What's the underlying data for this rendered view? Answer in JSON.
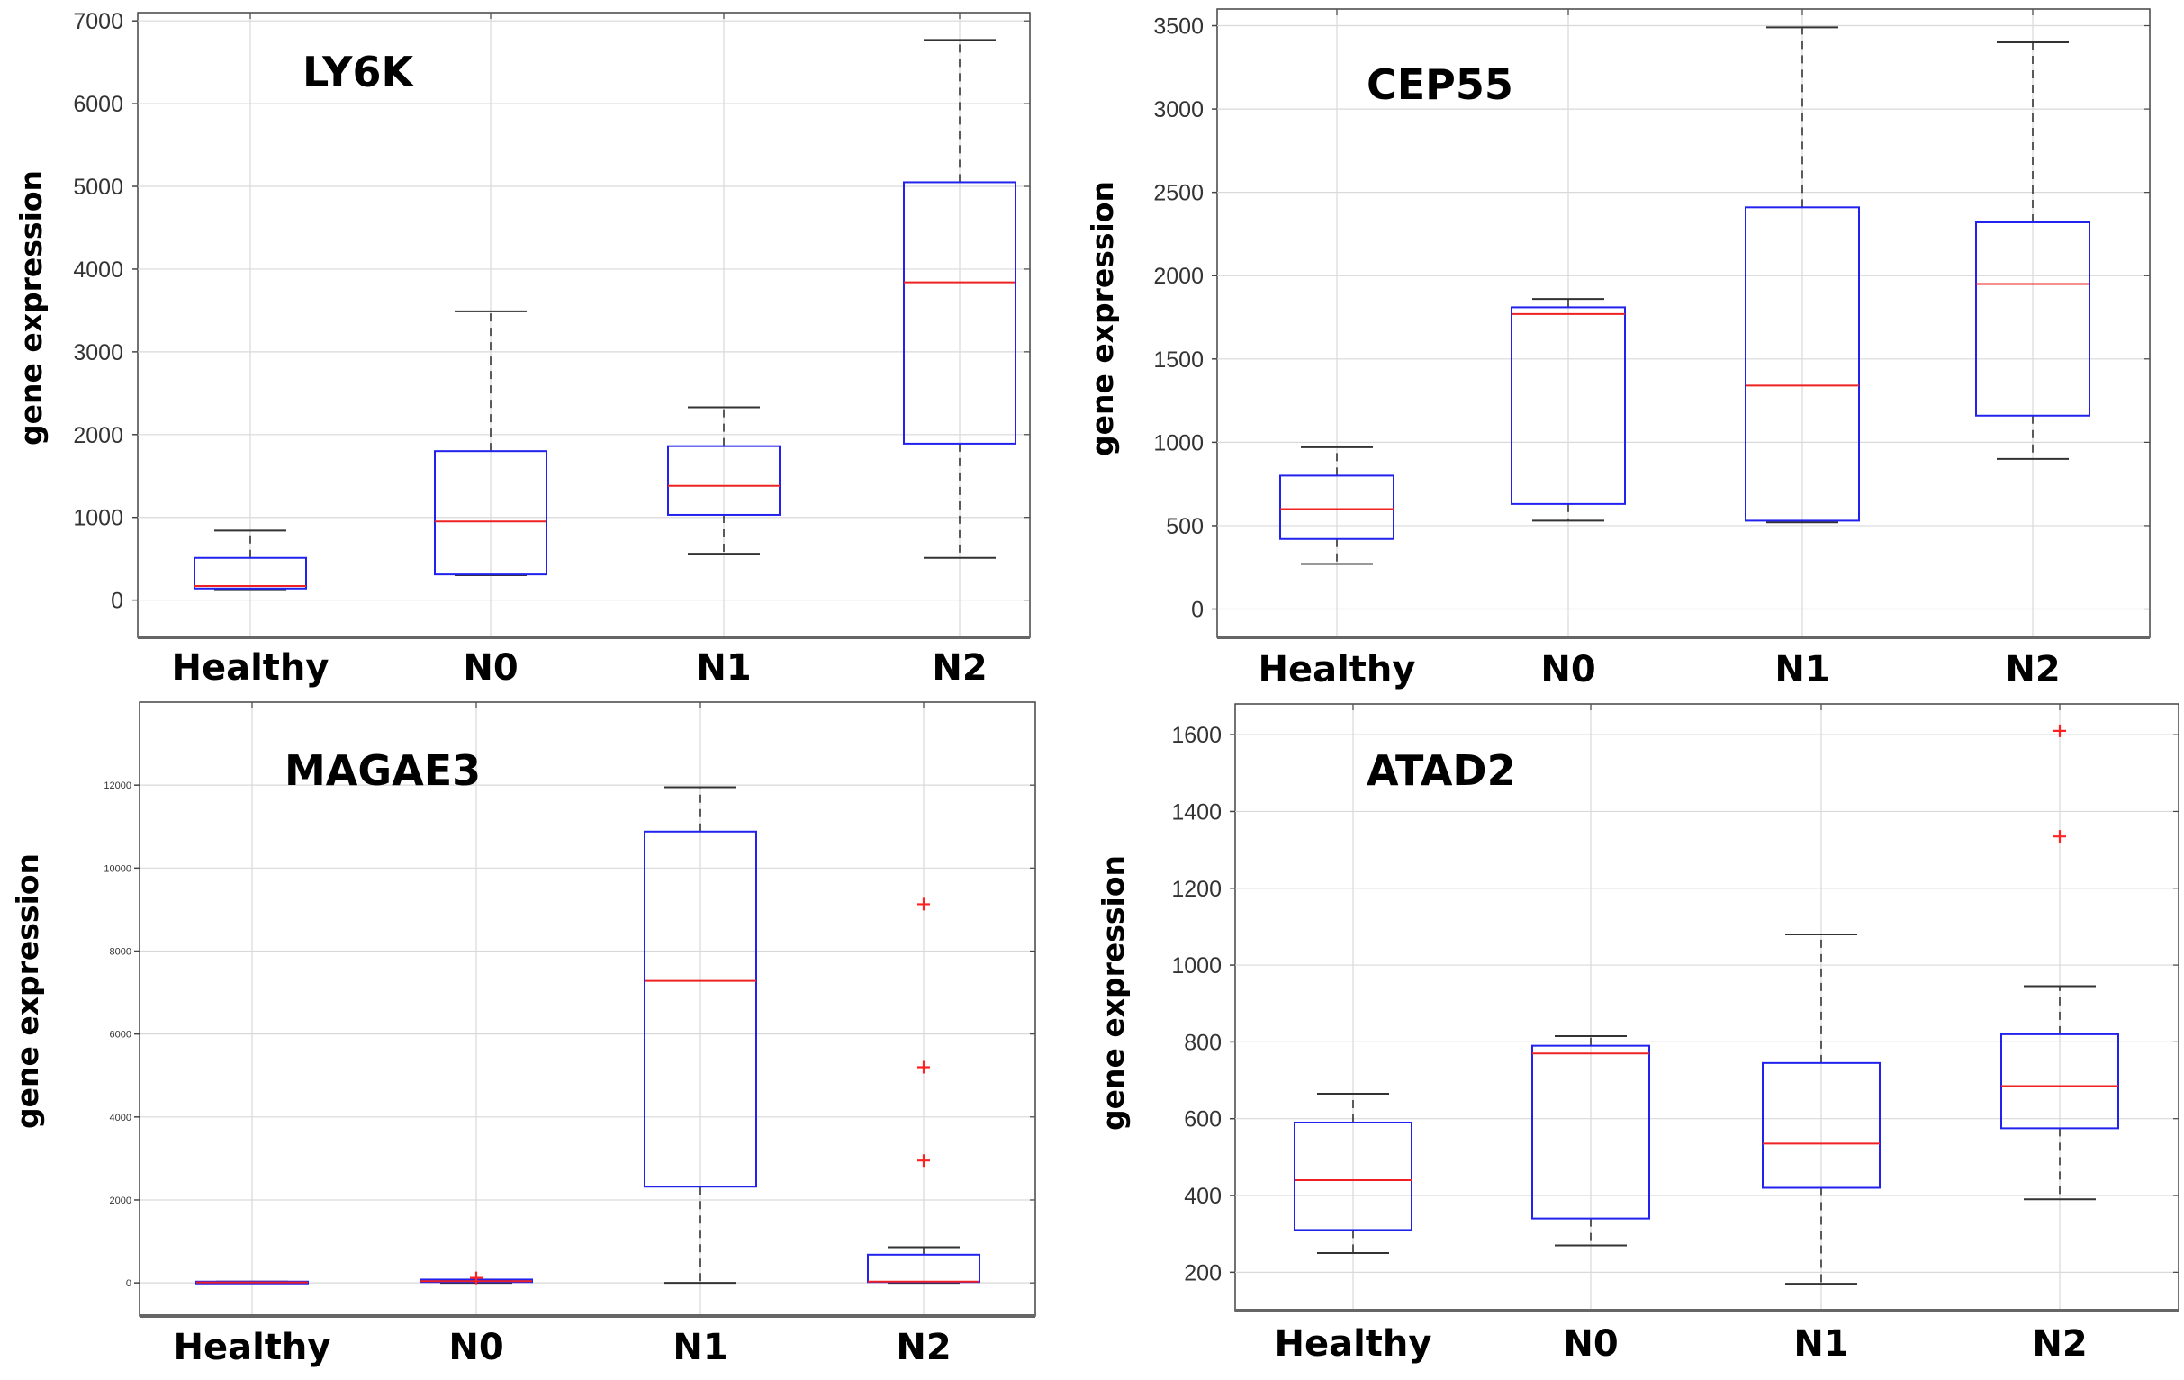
{
  "colors": {
    "box": "#2222ee",
    "median": "#ee2222",
    "whisker": "#333333",
    "outlier": "#ff2222",
    "grid": "#d9d9d9",
    "frame": "#444444"
  },
  "chart_data": [
    {
      "type": "boxplot",
      "title": "LY6K",
      "ylabel": "gene expression",
      "xlabel": "",
      "categories": [
        "Healthy",
        "N0",
        "N1",
        "N2"
      ],
      "ylim": [
        -450,
        7100
      ],
      "yticks": [
        0,
        1000,
        2000,
        3000,
        4000,
        5000,
        6000,
        7000
      ],
      "yticklabels": [
        "0",
        "1000",
        "2000",
        "3000",
        "4000",
        "5000",
        "6000",
        "7000"
      ],
      "grid": true,
      "boxes": [
        {
          "whislo": 130,
          "q1": 140,
          "med": 170,
          "q3": 510,
          "whishi": 840,
          "fliers": []
        },
        {
          "whislo": 300,
          "q1": 310,
          "med": 950,
          "q3": 1800,
          "whishi": 3490,
          "fliers": []
        },
        {
          "whislo": 560,
          "q1": 1030,
          "med": 1380,
          "q3": 1860,
          "whishi": 2330,
          "fliers": []
        },
        {
          "whislo": 510,
          "q1": 1890,
          "med": 3840,
          "q3": 5050,
          "whishi": 6770,
          "fliers": []
        }
      ]
    },
    {
      "type": "boxplot",
      "title": "CEP55",
      "ylabel": "gene expression",
      "xlabel": "",
      "categories": [
        "Healthy",
        "N0",
        "N1",
        "N2"
      ],
      "ylim": [
        -170,
        3600
      ],
      "yticks": [
        0,
        500,
        1000,
        1500,
        2000,
        2500,
        3000,
        3500
      ],
      "yticklabels": [
        "0",
        "500",
        "1000",
        "1500",
        "2000",
        "2500",
        "3000",
        "3500"
      ],
      "grid": true,
      "boxes": [
        {
          "whislo": 270,
          "q1": 420,
          "med": 600,
          "q3": 800,
          "whishi": 970,
          "fliers": []
        },
        {
          "whislo": 530,
          "q1": 630,
          "med": 1770,
          "q3": 1810,
          "whishi": 1860,
          "fliers": []
        },
        {
          "whislo": 520,
          "q1": 530,
          "med": 1340,
          "q3": 2410,
          "whishi": 3490,
          "fliers": []
        },
        {
          "whislo": 900,
          "q1": 1160,
          "med": 1950,
          "q3": 2320,
          "whishi": 3400,
          "fliers": []
        }
      ]
    },
    {
      "type": "boxplot",
      "title": "MAGAE3",
      "ylabel": "gene expression",
      "xlabel": "",
      "categories": [
        "Healthy",
        "N0",
        "N1",
        "N2"
      ],
      "ylim": [
        -800,
        14000
      ],
      "yticks": [
        0,
        2000,
        4000,
        6000,
        8000,
        10000,
        12000
      ],
      "yticklabels": [
        "0",
        "2000",
        "4000",
        "6000",
        "8000",
        "10000",
        "12000"
      ],
      "grid": true,
      "boxes": [
        {
          "whislo": 0,
          "q1": 0,
          "med": 10,
          "q3": 30,
          "whishi": 30,
          "fliers": []
        },
        {
          "whislo": 0,
          "q1": 20,
          "med": 40,
          "q3": 80,
          "whishi": 80,
          "fliers": [
            120
          ]
        },
        {
          "whislo": 0,
          "q1": 2320,
          "med": 7280,
          "q3": 10880,
          "whishi": 11950,
          "fliers": []
        },
        {
          "whislo": 0,
          "q1": 20,
          "med": 30,
          "q3": 680,
          "whishi": 860,
          "fliers": [
            2950,
            5200,
            9130
          ]
        }
      ]
    },
    {
      "type": "boxplot",
      "title": "ATAD2",
      "ylabel": "gene expression",
      "xlabel": "",
      "categories": [
        "Healthy",
        "N0",
        "N1",
        "N2"
      ],
      "ylim": [
        100,
        1680
      ],
      "yticks": [
        200,
        400,
        600,
        800,
        1000,
        1200,
        1400,
        1600
      ],
      "yticklabels": [
        "200",
        "400",
        "600",
        "800",
        "1000",
        "1200",
        "1400",
        "1600"
      ],
      "grid": true,
      "boxes": [
        {
          "whislo": 250,
          "q1": 310,
          "med": 440,
          "q3": 590,
          "whishi": 665,
          "fliers": []
        },
        {
          "whislo": 270,
          "q1": 340,
          "med": 770,
          "q3": 790,
          "whishi": 815,
          "fliers": []
        },
        {
          "whislo": 170,
          "q1": 420,
          "med": 535,
          "q3": 745,
          "whishi": 1080,
          "fliers": []
        },
        {
          "whislo": 390,
          "q1": 575,
          "med": 685,
          "q3": 820,
          "whishi": 945,
          "fliers": [
            1335,
            1610
          ]
        }
      ]
    }
  ]
}
